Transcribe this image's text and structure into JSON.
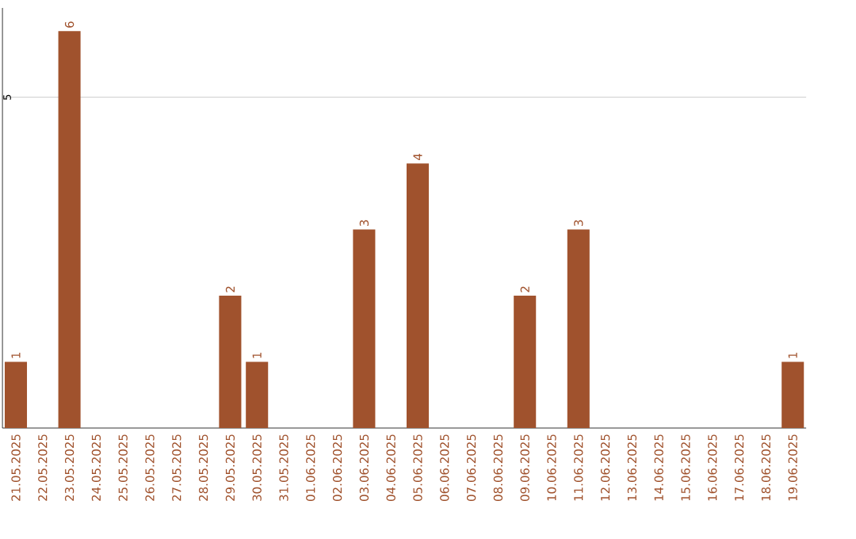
{
  "chart_data": {
    "type": "bar",
    "categories": [
      "21.05.2025",
      "22.05.2025",
      "23.05.2025",
      "24.05.2025",
      "25.05.2025",
      "26.05.2025",
      "27.05.2025",
      "28.05.2025",
      "29.05.2025",
      "30.05.2025",
      "31.05.2025",
      "01.06.2025",
      "02.06.2025",
      "03.06.2025",
      "04.06.2025",
      "05.06.2025",
      "06.06.2025",
      "07.06.2025",
      "08.06.2025",
      "09.06.2025",
      "10.06.2025",
      "11.06.2025",
      "12.06.2025",
      "13.06.2025",
      "14.06.2025",
      "15.06.2025",
      "16.06.2025",
      "17.06.2025",
      "18.06.2025",
      "19.06.2025"
    ],
    "values": [
      1,
      0,
      6,
      0,
      0,
      0,
      0,
      0,
      2,
      1,
      0,
      0,
      0,
      3,
      0,
      4,
      0,
      0,
      0,
      2,
      0,
      3,
      0,
      0,
      0,
      0,
      0,
      0,
      0,
      1
    ],
    "value_labels": [
      "1",
      null,
      "6",
      null,
      null,
      null,
      null,
      null,
      "2",
      "1",
      null,
      null,
      null,
      "3",
      null,
      "4",
      null,
      null,
      null,
      "2",
      null,
      "3",
      null,
      null,
      null,
      null,
      null,
      null,
      null,
      "1"
    ],
    "color": "#a0522d",
    "ylim": [
      0,
      6.35
    ],
    "yticks": [
      5
    ],
    "grid": "y"
  }
}
